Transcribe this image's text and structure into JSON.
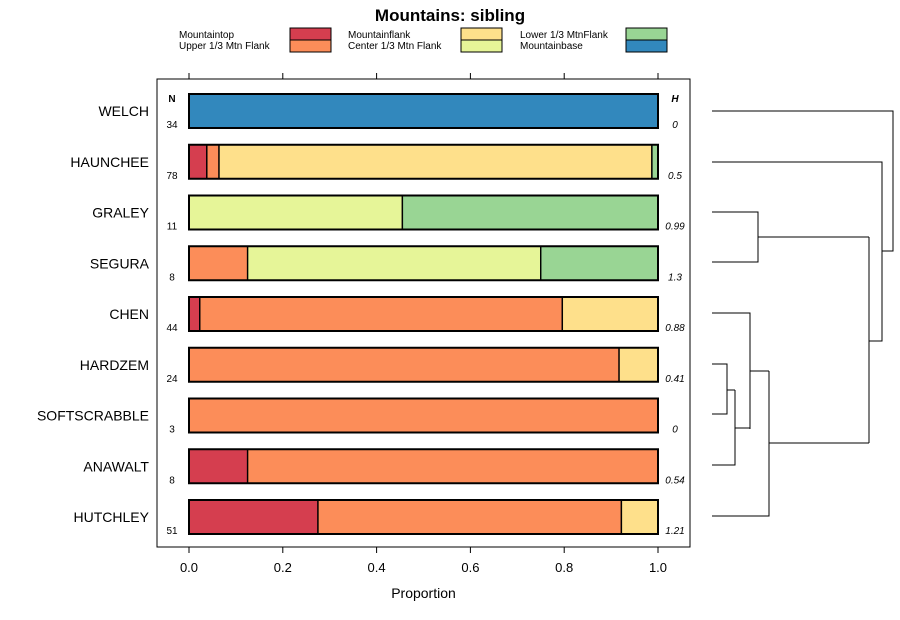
{
  "chart_data": {
    "type": "bar",
    "orientation": "horizontal-stacked-proportion",
    "title": "Mountains: sibling",
    "xlabel": "Proportion",
    "xlim": [
      0,
      1
    ],
    "xticks": [
      "0.0",
      "0.2",
      "0.4",
      "0.6",
      "0.8",
      "1.0"
    ],
    "n_header": "N",
    "h_header": "H",
    "legend": [
      {
        "name": "Mountaintop",
        "color": "#d53e4f"
      },
      {
        "name": "Upper 1/3 Mtn Flank",
        "color": "#fc8d59"
      },
      {
        "name": "Mountainflank",
        "color": "#fee08b"
      },
      {
        "name": "Center 1/3 Mtn Flank",
        "color": "#e6f598"
      },
      {
        "name": "Lower 1/3 MtnFlank",
        "color": "#99d594"
      },
      {
        "name": "Mountainbase",
        "color": "#3288bd"
      }
    ],
    "rows": [
      {
        "label": "WELCH",
        "n": "34",
        "h": "0",
        "segments": [
          0,
          0,
          0,
          0,
          0,
          1
        ]
      },
      {
        "label": "HAUNCHEE",
        "n": "78",
        "h": "0.5",
        "segments": [
          0.038,
          0.026,
          0.923,
          0,
          0.013,
          0
        ]
      },
      {
        "label": "GRALEY",
        "n": "11",
        "h": "0.99",
        "segments": [
          0,
          0,
          0,
          0.455,
          0.545,
          0
        ]
      },
      {
        "label": "SEGURA",
        "n": "8",
        "h": "1.3",
        "segments": [
          0,
          0.125,
          0,
          0.625,
          0.25,
          0
        ]
      },
      {
        "label": "CHEN",
        "n": "44",
        "h": "0.88",
        "segments": [
          0.023,
          0.773,
          0.204,
          0,
          0,
          0
        ]
      },
      {
        "label": "HARDZEM",
        "n": "24",
        "h": "0.41",
        "segments": [
          0,
          0.917,
          0.083,
          0,
          0,
          0
        ]
      },
      {
        "label": "SOFTSCRABBLE",
        "n": "3",
        "h": "0",
        "segments": [
          0,
          1,
          0,
          0,
          0,
          0
        ]
      },
      {
        "label": "ANAWALT",
        "n": "8",
        "h": "0.54",
        "segments": [
          0.125,
          0.875,
          0,
          0,
          0,
          0
        ]
      },
      {
        "label": "HUTCHLEY",
        "n": "51",
        "h": "1.21",
        "segments": [
          0.275,
          0.647,
          0.078,
          0,
          0,
          0
        ]
      }
    ]
  }
}
